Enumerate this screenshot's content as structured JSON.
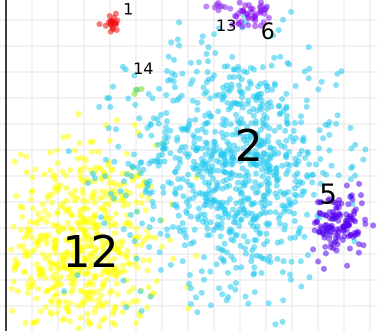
{
  "chart_data": {
    "type": "scatter",
    "title": "",
    "xlabel": "",
    "ylabel": "",
    "xlim": [
      0,
      100
    ],
    "ylim": [
      0,
      100
    ],
    "grid": true,
    "legend": "none",
    "clusters": [
      {
        "label": "12",
        "color": "#ffff00",
        "center": [
          22,
          25
        ],
        "spread": [
          10,
          16
        ],
        "count": 620
      },
      {
        "label": "2",
        "color": "#22c8ee",
        "center": [
          62,
          50
        ],
        "spread": [
          14,
          18
        ],
        "count": 900
      },
      {
        "label": "5",
        "color": "#5500ee",
        "center": [
          90,
          32
        ],
        "spread": [
          3.5,
          5
        ],
        "count": 130
      },
      {
        "label": "6",
        "color": "#8811ee",
        "center": [
          66,
          96
        ],
        "spread": [
          2.5,
          2
        ],
        "count": 45
      },
      {
        "label": "1",
        "color": "#ee1111",
        "center": [
          30,
          93
        ],
        "spread": [
          1.2,
          1.2
        ],
        "count": 22
      },
      {
        "label": "13",
        "color": "#8822ee",
        "center": [
          58,
          98
        ],
        "spread": [
          1.5,
          1.2
        ],
        "count": 10
      },
      {
        "label": "14",
        "color": "#77dd22",
        "center": [
          35,
          74
        ],
        "spread": [
          1,
          1
        ],
        "count": 3
      }
    ],
    "annotations": [
      {
        "text": "12",
        "x": 24,
        "y": 23,
        "size": "large"
      },
      {
        "text": "2",
        "x": 66,
        "y": 55,
        "size": "large"
      },
      {
        "text": "5",
        "x": 87,
        "y": 41,
        "size": "medium"
      },
      {
        "text": "6",
        "x": 71,
        "y": 90,
        "size": "small"
      },
      {
        "text": "13",
        "x": 60,
        "y": 92,
        "size": "tiny"
      },
      {
        "text": "14",
        "x": 38,
        "y": 79,
        "size": "tiny"
      },
      {
        "text": "1",
        "x": 34,
        "y": 97,
        "size": "tiny"
      }
    ],
    "colors": {
      "grid": "#e6e6e6",
      "axis": "#000000"
    }
  }
}
